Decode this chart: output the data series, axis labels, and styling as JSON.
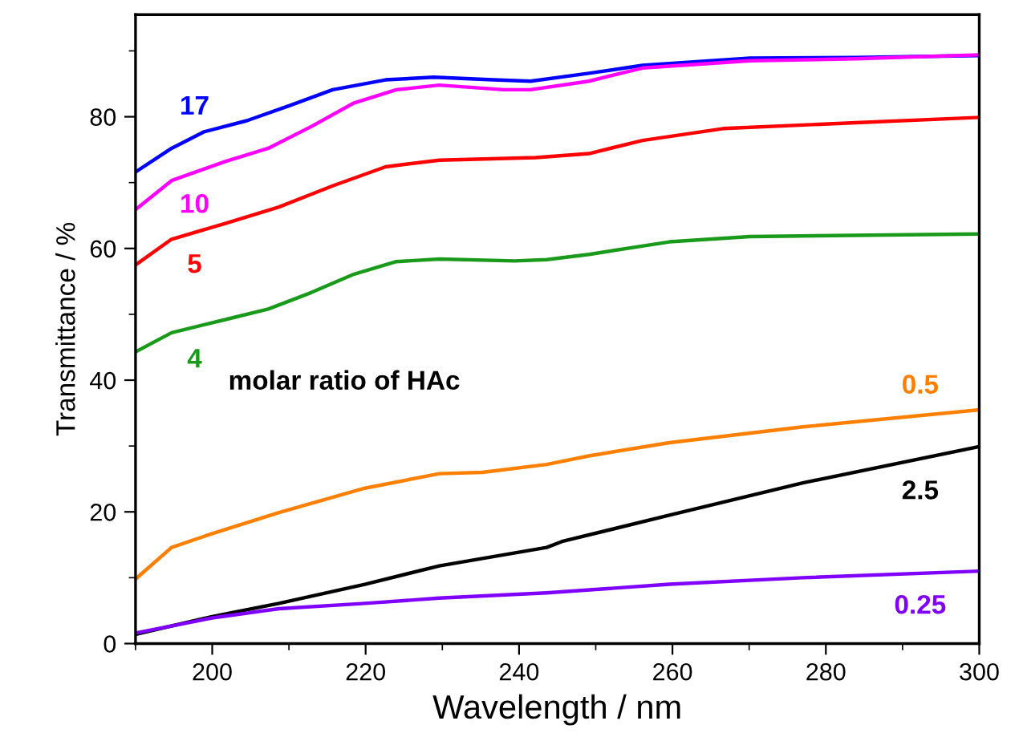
{
  "chart_data": {
    "type": "line",
    "xlabel": "Wavelength / nm",
    "ylabel": "Transmittance / %",
    "xlim": [
      190,
      300
    ],
    "ylim": [
      0,
      95.5
    ],
    "xticks": [
      200,
      220,
      240,
      260,
      280,
      300
    ],
    "yticks": [
      0,
      20,
      40,
      60,
      80
    ],
    "grid": false,
    "legend": false,
    "marker": "none",
    "line_style": "solid",
    "annotations": [
      "molar ratio of HAc"
    ],
    "series": [
      {
        "name": "17",
        "color": "#0000ff",
        "x": [
          190,
          194.7,
          198.9,
          204.5,
          210.1,
          215.7,
          222.6,
          228.9,
          236.6,
          241.5,
          249.1,
          256.1,
          270.1,
          283.9,
          300
        ],
        "values": [
          71.6,
          75.2,
          77.7,
          79.4,
          81.7,
          84.1,
          85.6,
          86.0,
          85.6,
          85.4,
          86.6,
          87.8,
          88.9,
          89.0,
          89.3
        ]
      },
      {
        "name": "10",
        "color": "#ff00ff",
        "x": [
          190,
          194.7,
          201.7,
          207.3,
          212.9,
          218.5,
          224,
          229.6,
          238,
          241.5,
          249.1,
          256.1,
          270.1,
          283.9,
          300
        ],
        "values": [
          65.9,
          70.3,
          73.2,
          75.2,
          78.5,
          82.1,
          84.1,
          84.8,
          84.1,
          84.1,
          85.4,
          87.4,
          88.5,
          88.8,
          89.4
        ]
      },
      {
        "name": "5",
        "color": "#ff0000",
        "x": [
          190,
          194.7,
          201.7,
          208.7,
          215.7,
          222.6,
          229.6,
          242.2,
          249.1,
          256.1,
          266.6,
          283.9,
          300
        ],
        "values": [
          57.5,
          61.4,
          63.8,
          66.3,
          69.5,
          72.4,
          73.4,
          73.8,
          74.4,
          76.4,
          78.2,
          79.1,
          79.9
        ]
      },
      {
        "name": "4",
        "color": "#1a9a1a",
        "x": [
          190,
          194.7,
          201.7,
          207.3,
          212.9,
          218.5,
          224,
          229.6,
          239.4,
          243.6,
          249.1,
          259.6,
          270.1,
          300
        ],
        "values": [
          44.3,
          47.2,
          49.2,
          50.8,
          53.3,
          56.1,
          58.0,
          58.4,
          58.1,
          58.3,
          59.1,
          61.0,
          61.8,
          62.2
        ]
      },
      {
        "name": "0.5",
        "color": "#ff8000",
        "x": [
          190,
          194.7,
          200,
          208.7,
          219.9,
          229.6,
          235.2,
          243.6,
          249.1,
          259.6,
          277,
          300
        ],
        "values": [
          9.8,
          14.6,
          16.7,
          19.9,
          23.6,
          25.8,
          26.0,
          27.2,
          28.5,
          30.5,
          32.9,
          35.5
        ]
      },
      {
        "name": "2.5",
        "color": "#000000",
        "x": [
          190,
          200,
          208.7,
          219.9,
          229.6,
          243.6,
          245.6,
          259.6,
          277,
          300
        ],
        "values": [
          1.4,
          4.1,
          6.1,
          9.0,
          11.8,
          14.6,
          15.5,
          19.5,
          24.4,
          29.9
        ]
      },
      {
        "name": "0.25",
        "color": "#8000ff",
        "x": [
          190,
          200,
          208.7,
          219.9,
          229.6,
          243.6,
          259.6,
          277,
          300
        ],
        "values": [
          1.6,
          3.9,
          5.3,
          6.1,
          6.9,
          7.7,
          9.0,
          10.0,
          11.0
        ]
      }
    ]
  }
}
